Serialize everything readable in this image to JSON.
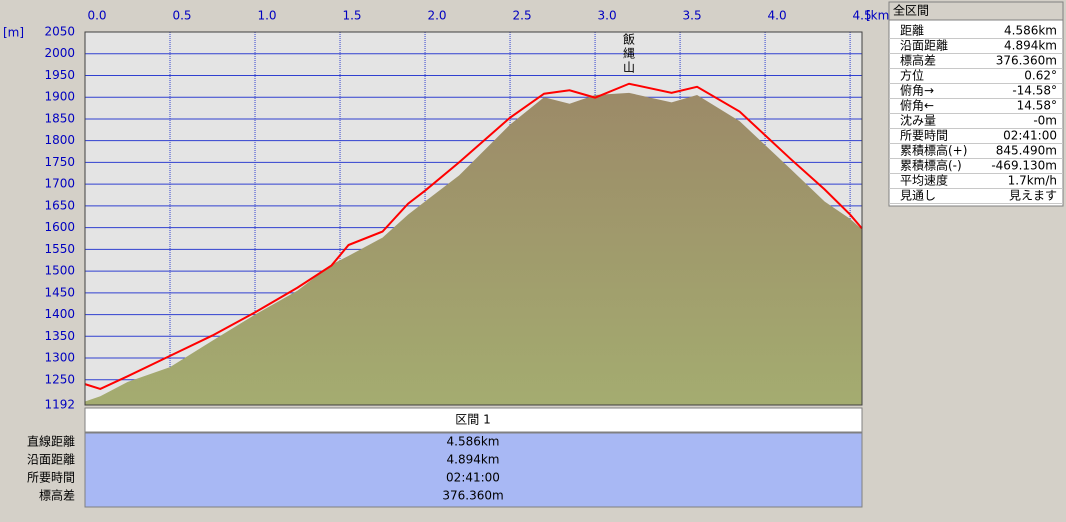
{
  "chart_data": {
    "type": "line",
    "x_label": "[km]",
    "y_label": "[m]",
    "annotations": [
      {
        "text": "飯縄山",
        "x": 3.2,
        "y": 1931
      }
    ],
    "x": [
      0,
      0.09,
      0.25,
      0.5,
      0.75,
      1.0,
      1.25,
      1.45,
      1.55,
      1.75,
      1.9,
      2.0,
      2.2,
      2.5,
      2.7,
      2.85,
      3.0,
      3.2,
      3.45,
      3.6,
      3.85,
      4.15,
      4.35,
      4.5,
      4.57
    ],
    "series": [
      {
        "color": "#9c8a68",
        "color2": "#a4ac70",
        "area": true,
        "values": [
          1200,
          1212,
          1245,
          1279,
          1340,
          1400,
          1455,
          1515,
          1535,
          1577,
          1630,
          1660,
          1720,
          1837,
          1900,
          1885,
          1905,
          1910,
          1888,
          1905,
          1845,
          1735,
          1660,
          1620,
          1596
        ]
      },
      {
        "color": "#ff0000",
        "area": false,
        "values": [
          1240,
          1229,
          1258,
          1305,
          1352,
          1405,
          1462,
          1513,
          1560,
          1591,
          1655,
          1685,
          1750,
          1853,
          1908,
          1916,
          1899,
          1931,
          1910,
          1924,
          1867,
          1758,
          1688,
          1630,
          1598
        ]
      }
    ],
    "xlim": [
      0,
      4.57
    ],
    "xticks": [
      {
        "value": 0,
        "label": "0.0"
      },
      0.5,
      {
        "value": 1,
        "label": "1.0"
      },
      1.5,
      {
        "value": 2,
        "label": "2.0"
      },
      2.5,
      {
        "value": 3,
        "label": "3.0"
      },
      3.5,
      {
        "value": 4,
        "label": "4.0"
      },
      4.5
    ],
    "ylim": [
      1192,
      2050
    ],
    "yticks": [
      1192,
      1250,
      1300,
      1350,
      1400,
      1450,
      1500,
      1550,
      1600,
      1650,
      1700,
      1750,
      1800,
      1850,
      1900,
      1950,
      2000,
      2050
    ],
    "grid": true
  },
  "side_panel": {
    "title": "全区間",
    "rows": [
      [
        "距離",
        "4.586km"
      ],
      [
        "沿面距離",
        "4.894km"
      ],
      [
        "標高差",
        "376.360m"
      ],
      [
        "方位",
        "0.62°"
      ],
      [
        "俯角→",
        "-14.58°"
      ],
      [
        "俯角←",
        "14.58°"
      ],
      [
        "沈み量",
        "-0m"
      ],
      [
        "所要時間",
        "02:41:00"
      ],
      [
        "累積標高(+)",
        "845.490m"
      ],
      [
        "累積標高(-)",
        "-469.130m"
      ],
      [
        "平均速度",
        "1.7km/h"
      ],
      [
        "見通し",
        "見えます"
      ]
    ]
  },
  "section_table": {
    "header": "区間 1",
    "rows": [
      [
        "直線距離",
        "4.586km"
      ],
      [
        "沿面距離",
        "4.894km"
      ],
      [
        "所要時間",
        "02:41:00"
      ],
      [
        "標高差",
        "376.360m"
      ]
    ]
  }
}
